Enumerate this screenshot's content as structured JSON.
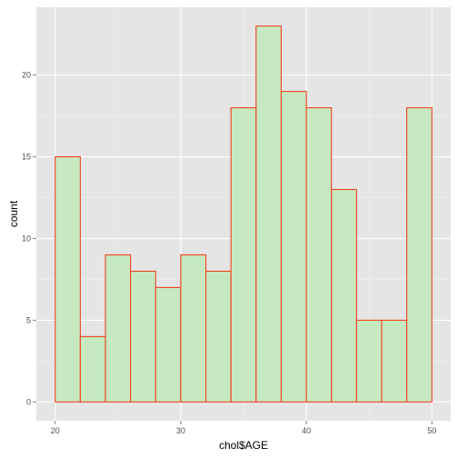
{
  "chart_data": {
    "type": "bar",
    "subtype": "histogram",
    "xlabel": "chol$AGE",
    "ylabel": "count",
    "bins": [
      {
        "start": 20,
        "end": 22,
        "count": 15
      },
      {
        "start": 22,
        "end": 24,
        "count": 4
      },
      {
        "start": 24,
        "end": 26,
        "count": 9
      },
      {
        "start": 26,
        "end": 28,
        "count": 8
      },
      {
        "start": 28,
        "end": 30,
        "count": 7
      },
      {
        "start": 30,
        "end": 32,
        "count": 9
      },
      {
        "start": 32,
        "end": 34,
        "count": 8
      },
      {
        "start": 34,
        "end": 36,
        "count": 18
      },
      {
        "start": 36,
        "end": 38,
        "count": 23
      },
      {
        "start": 38,
        "end": 40,
        "count": 19
      },
      {
        "start": 40,
        "end": 42,
        "count": 18
      },
      {
        "start": 42,
        "end": 44,
        "count": 13
      },
      {
        "start": 44,
        "end": 46,
        "count": 5
      },
      {
        "start": 46,
        "end": 48,
        "count": 5
      },
      {
        "start": 48,
        "end": 50,
        "count": 18
      }
    ],
    "x_ticks": [
      20,
      30,
      40,
      50
    ],
    "y_ticks": [
      0,
      5,
      10,
      15,
      20
    ],
    "xlim": [
      18.5,
      51.5
    ],
    "ylim": [
      -1.15,
      24.15
    ],
    "grid": true,
    "colors": {
      "panel_background": "#e5e5e5",
      "grid_major": "#ffffff",
      "bar_fill": "#c6e9c2",
      "bar_outline": "#f0421e"
    }
  }
}
